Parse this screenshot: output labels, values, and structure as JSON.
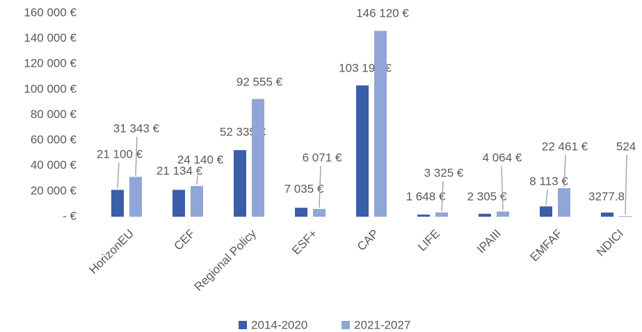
{
  "chart_data": {
    "type": "bar",
    "categories": [
      "HorizonEU",
      "CEF",
      "Regional Policy",
      "ESF+",
      "CAP",
      "LIFE",
      "IPAIII",
      "EMFAF",
      "NDICI"
    ],
    "series": [
      {
        "name": "2014-2020",
        "color": "#3a5ea8",
        "values": [
          21100,
          21134,
          52335,
          7035,
          103197,
          1648,
          2305,
          8113,
          3277.8
        ],
        "value_labels": [
          "21 100 €",
          "21 134 €",
          "52 335 €",
          "7 035 €",
          "103 197 €",
          "1 648 €",
          "2 305 €",
          "8 113 €",
          "3277.8"
        ]
      },
      {
        "name": "2021-2027",
        "color": "#8fa6d6",
        "values": [
          31343,
          24140,
          92555,
          6071,
          146120,
          3325,
          4064,
          22461,
          524
        ],
        "value_labels": [
          "31 343 €",
          "24 140 €",
          "92 555 €",
          "6 071 €",
          "146 120 €",
          "3 325 €",
          "4 064 €",
          "22 461 €",
          "524"
        ]
      }
    ],
    "ylim": [
      0,
      160000
    ],
    "yticks": [
      {
        "value": 0,
        "label": "-   €"
      },
      {
        "value": 20000,
        "label": "20 000 €"
      },
      {
        "value": 40000,
        "label": "40 000 €"
      },
      {
        "value": 60000,
        "label": "60 000 €"
      },
      {
        "value": 80000,
        "label": "80 000 €"
      },
      {
        "value": 100000,
        "label": "100 000 €"
      },
      {
        "value": 120000,
        "label": "120 000 €"
      },
      {
        "value": 140000,
        "label": "140 000 €"
      },
      {
        "value": 160000,
        "label": "160 000 €"
      }
    ],
    "grid": false,
    "legend": "bottom"
  }
}
